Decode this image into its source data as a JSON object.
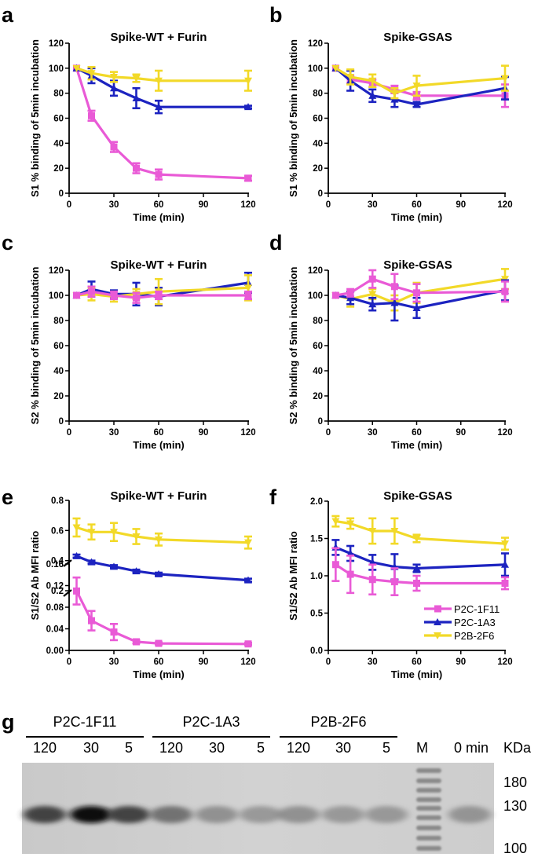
{
  "colors": {
    "P2C-1F11": "#e95ad6",
    "P2C-1A3": "#1c23c0",
    "P2B-2F6": "#f2d928"
  },
  "legend": [
    "P2C-1F11",
    "P2C-1A3",
    "P2B-2F6"
  ],
  "panels": {
    "a": "a",
    "b": "b",
    "c": "c",
    "d": "d",
    "e": "e",
    "f": "f",
    "g": "g"
  },
  "chart_data": [
    {
      "id": "a",
      "type": "line",
      "title": "Spike-WT + Furin",
      "xlabel": "Time (min)",
      "ylabel": "S1 % binding of 5min incubation",
      "xlim": [
        0,
        120
      ],
      "ylim": [
        0,
        120
      ],
      "xticks": [
        0,
        30,
        60,
        90,
        120
      ],
      "yticks": [
        0,
        20,
        40,
        60,
        80,
        100,
        120
      ],
      "x": [
        5,
        15,
        30,
        45,
        60,
        120
      ],
      "series": [
        {
          "name": "P2C-1F11",
          "values": [
            100,
            62,
            37,
            20,
            15,
            12
          ],
          "err": [
            0,
            4,
            4,
            4,
            4,
            2
          ]
        },
        {
          "name": "P2C-1A3",
          "values": [
            100,
            94,
            84,
            76,
            69,
            69
          ],
          "err": [
            0,
            6,
            6,
            8,
            5,
            1
          ]
        },
        {
          "name": "P2B-2F6",
          "values": [
            100,
            96,
            93,
            92,
            90,
            90
          ],
          "err": [
            0,
            5,
            4,
            3,
            8,
            8
          ]
        }
      ]
    },
    {
      "id": "b",
      "type": "line",
      "title": "Spike-GSAS",
      "xlabel": "Time (min)",
      "ylabel": "S1 % binding of 5min incubation",
      "xlim": [
        0,
        120
      ],
      "ylim": [
        0,
        120
      ],
      "xticks": [
        0,
        30,
        60,
        90,
        120
      ],
      "yticks": [
        0,
        20,
        40,
        60,
        80,
        100,
        120
      ],
      "x": [
        5,
        15,
        30,
        45,
        60,
        120
      ],
      "series": [
        {
          "name": "P2C-1F11",
          "values": [
            100,
            91,
            88,
            83,
            78,
            78
          ],
          "err": [
            0,
            3,
            3,
            3,
            3,
            9
          ]
        },
        {
          "name": "P2C-1A3",
          "values": [
            100,
            90,
            78,
            75,
            71,
            84
          ],
          "err": [
            0,
            8,
            5,
            6,
            2,
            9
          ]
        },
        {
          "name": "P2B-2F6",
          "values": [
            100,
            93,
            90,
            80,
            86,
            92
          ],
          "err": [
            0,
            6,
            5,
            4,
            8,
            10
          ]
        }
      ]
    },
    {
      "id": "c",
      "type": "line",
      "title": "Spike-WT + Furin",
      "xlabel": "Time (min)",
      "ylabel": "S2 % binding of 5min incubation",
      "xlim": [
        0,
        120
      ],
      "ylim": [
        0,
        120
      ],
      "xticks": [
        0,
        30,
        60,
        90,
        120
      ],
      "yticks": [
        0,
        20,
        40,
        60,
        80,
        100,
        120
      ],
      "x": [
        5,
        15,
        30,
        45,
        60,
        120
      ],
      "series": [
        {
          "name": "P2C-1A3",
          "values": [
            100,
            105,
            101,
            101,
            99,
            110
          ],
          "err": [
            0,
            6,
            3,
            9,
            7,
            8
          ]
        },
        {
          "name": "P2B-2F6",
          "values": [
            100,
            101,
            99,
            101,
            103,
            106
          ],
          "err": [
            0,
            5,
            4,
            4,
            10,
            10
          ]
        },
        {
          "name": "P2C-1F11",
          "values": [
            100,
            103,
            100,
            98,
            100,
            100
          ],
          "err": [
            0,
            4,
            3,
            4,
            3,
            3
          ]
        }
      ]
    },
    {
      "id": "d",
      "type": "line",
      "title": "Spike-GSAS",
      "xlabel": "Time (min)",
      "ylabel": "S2 % binding of 5min incubation",
      "xlim": [
        0,
        120
      ],
      "ylim": [
        0,
        120
      ],
      "xticks": [
        0,
        30,
        60,
        90,
        120
      ],
      "yticks": [
        0,
        20,
        40,
        60,
        80,
        100,
        120
      ],
      "x": [
        5,
        15,
        30,
        45,
        60,
        120
      ],
      "series": [
        {
          "name": "P2B-2F6",
          "values": [
            100,
            97,
            101,
            94,
            102,
            113
          ],
          "err": [
            0,
            6,
            4,
            6,
            8,
            8
          ]
        },
        {
          "name": "P2C-1A3",
          "values": [
            100,
            98,
            93,
            94,
            90,
            104
          ],
          "err": [
            0,
            5,
            5,
            14,
            8,
            8
          ]
        },
        {
          "name": "P2C-1F11",
          "values": [
            100,
            102,
            113,
            107,
            102,
            103
          ],
          "err": [
            0,
            3,
            7,
            10,
            7,
            8
          ]
        }
      ]
    },
    {
      "id": "e",
      "type": "line",
      "title": "Spike-WT + Furin",
      "xlabel": "Time (min)",
      "ylabel": "S1/S2 Ab MFI ratio",
      "xlim": [
        0,
        120
      ],
      "broken_axis": true,
      "upper_ylim": [
        0.2,
        0.8
      ],
      "upper_yticks": [
        0.2,
        0.4,
        0.6,
        0.8
      ],
      "lower_ylim": [
        0,
        0.16
      ],
      "lower_yticks": [
        0.0,
        0.04,
        0.08,
        0.12,
        0.16
      ],
      "xticks": [
        0,
        30,
        60,
        90,
        120
      ],
      "x": [
        5,
        15,
        30,
        45,
        60,
        120
      ],
      "series": [
        {
          "name": "P2B-2F6",
          "values": [
            0.62,
            0.59,
            0.59,
            0.56,
            0.54,
            0.52
          ],
          "err": [
            0.06,
            0.05,
            0.06,
            0.05,
            0.04,
            0.04
          ]
        },
        {
          "name": "P2C-1A3",
          "values": [
            0.43,
            0.39,
            0.36,
            0.33,
            0.31,
            0.27
          ],
          "err": [
            0.01,
            0.01,
            0.01,
            0.01,
            0.01,
            0.01
          ]
        },
        {
          "name": "P2C-1F11",
          "values": [
            0.11,
            0.055,
            0.034,
            0.016,
            0.013,
            0.012
          ],
          "err": [
            0.025,
            0.018,
            0.015,
            0.003,
            0.002,
            0.002
          ]
        }
      ]
    },
    {
      "id": "f",
      "type": "line",
      "title": "Spike-GSAS",
      "xlabel": "Time (min)",
      "ylabel": "S1/S2 Ab MFI ratio",
      "xlim": [
        0,
        120
      ],
      "ylim": [
        0,
        2.0
      ],
      "xticks": [
        0,
        30,
        60,
        90,
        120
      ],
      "yticks": [
        0.0,
        0.5,
        1.0,
        1.5,
        2.0
      ],
      "x": [
        5,
        15,
        30,
        45,
        60,
        120
      ],
      "series": [
        {
          "name": "P2B-2F6",
          "values": [
            1.73,
            1.7,
            1.6,
            1.6,
            1.5,
            1.43
          ],
          "err": [
            0.07,
            0.07,
            0.17,
            0.17,
            0.05,
            0.08
          ]
        },
        {
          "name": "P2C-1A3",
          "values": [
            1.38,
            1.3,
            1.18,
            1.12,
            1.1,
            1.15
          ],
          "err": [
            0.1,
            0.1,
            0.1,
            0.17,
            0.05,
            0.15
          ]
        },
        {
          "name": "P2C-1F11",
          "values": [
            1.15,
            1.02,
            0.95,
            0.92,
            0.9,
            0.9
          ],
          "err": [
            0.22,
            0.25,
            0.2,
            0.18,
            0.1,
            0.08
          ]
        }
      ]
    }
  ],
  "blot": {
    "groups": [
      "P2C-1F11",
      "P2C-1A3",
      "P2B-2F6"
    ],
    "lanes": [
      "120",
      "30",
      "5",
      "120",
      "30",
      "5",
      "120",
      "30",
      "5"
    ],
    "marker_lane": "M",
    "zero_label": "0 min",
    "kda_label": "KDa",
    "markers": [
      "180",
      "130",
      "100"
    ],
    "band_intensity": [
      0.72,
      0.92,
      0.72,
      0.55,
      0.42,
      0.38,
      0.42,
      0.38,
      0.38,
      0.0,
      0.4
    ]
  }
}
